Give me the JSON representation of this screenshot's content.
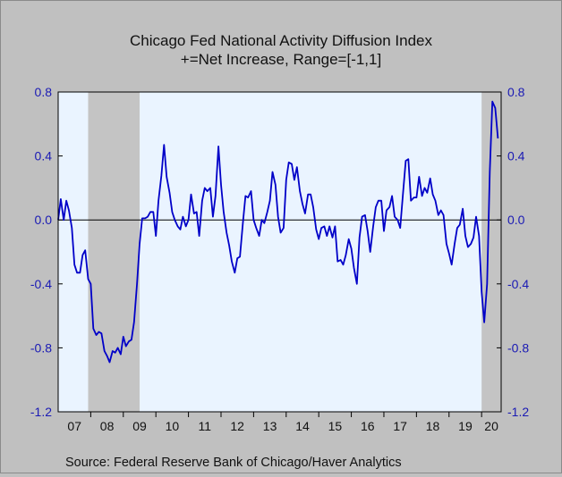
{
  "chart_data": {
    "type": "line",
    "title": "Chicago Fed National Activity Diffusion Index",
    "subtitle": "+=Net Increase, Range=[-1,1]",
    "source": "Source:  Federal Reserve Bank of Chicago/Haver Analytics",
    "x_tick_labels": [
      "07",
      "08",
      "09",
      "10",
      "11",
      "12",
      "13",
      "14",
      "15",
      "16",
      "17",
      "18",
      "19",
      "20"
    ],
    "x_range": [
      2007.0,
      2020.6
    ],
    "ylim": [
      -1.2,
      0.8
    ],
    "y_ticks": [
      0.8,
      0.4,
      0.0,
      -0.4,
      -0.8,
      -1.2
    ],
    "y_tick_labels": [
      "0.8",
      "0.4",
      "0.0",
      "-0.4",
      "-0.8",
      "-1.2"
    ],
    "zero_line": true,
    "recessions": [
      [
        2007.92,
        2009.5
      ],
      [
        2020.0,
        2020.6
      ]
    ],
    "series": [
      {
        "x": [
          2007.0,
          2007.08,
          2007.17,
          2007.25,
          2007.33,
          2007.42,
          2007.5,
          2007.58,
          2007.67,
          2007.75,
          2007.83,
          2007.92,
          2008.0,
          2008.08,
          2008.17,
          2008.25,
          2008.33,
          2008.42,
          2008.5,
          2008.58,
          2008.67,
          2008.75,
          2008.83,
          2008.92,
          2009.0,
          2009.08,
          2009.17,
          2009.25,
          2009.33,
          2009.42,
          2009.5,
          2009.58,
          2009.67,
          2009.75,
          2009.83,
          2009.92,
          2010.0,
          2010.08,
          2010.17,
          2010.25,
          2010.33,
          2010.42,
          2010.5,
          2010.58,
          2010.67,
          2010.75,
          2010.83,
          2010.92,
          2011.0,
          2011.08,
          2011.17,
          2011.25,
          2011.33,
          2011.42,
          2011.5,
          2011.58,
          2011.67,
          2011.75,
          2011.83,
          2011.92,
          2012.0,
          2012.08,
          2012.17,
          2012.25,
          2012.33,
          2012.42,
          2012.5,
          2012.58,
          2012.67,
          2012.75,
          2012.83,
          2012.92,
          2013.0,
          2013.08,
          2013.17,
          2013.25,
          2013.33,
          2013.42,
          2013.5,
          2013.58,
          2013.67,
          2013.75,
          2013.83,
          2013.92,
          2014.0,
          2014.08,
          2014.17,
          2014.25,
          2014.33,
          2014.42,
          2014.5,
          2014.58,
          2014.67,
          2014.75,
          2014.83,
          2014.92,
          2015.0,
          2015.08,
          2015.17,
          2015.25,
          2015.33,
          2015.42,
          2015.5,
          2015.58,
          2015.67,
          2015.75,
          2015.83,
          2015.92,
          2016.0,
          2016.08,
          2016.17,
          2016.25,
          2016.33,
          2016.42,
          2016.5,
          2016.58,
          2016.67,
          2016.75,
          2016.83,
          2016.92,
          2017.0,
          2017.08,
          2017.17,
          2017.25,
          2017.33,
          2017.42,
          2017.5,
          2017.58,
          2017.67,
          2017.75,
          2017.83,
          2017.92,
          2018.0,
          2018.08,
          2018.17,
          2018.25,
          2018.33,
          2018.42,
          2018.5,
          2018.58,
          2018.67,
          2018.75,
          2018.83,
          2018.92,
          2019.0,
          2019.08,
          2019.17,
          2019.25,
          2019.33,
          2019.42,
          2019.5,
          2019.58,
          2019.67,
          2019.75,
          2019.83,
          2019.92,
          2020.0,
          2020.08,
          2020.17,
          2020.25,
          2020.33,
          2020.42,
          2020.5
        ],
        "y": [
          0.0,
          0.13,
          0.0,
          0.12,
          0.06,
          -0.05,
          -0.28,
          -0.33,
          -0.33,
          -0.22,
          -0.19,
          -0.37,
          -0.4,
          -0.68,
          -0.72,
          -0.7,
          -0.71,
          -0.82,
          -0.85,
          -0.89,
          -0.82,
          -0.83,
          -0.8,
          -0.84,
          -0.73,
          -0.79,
          -0.76,
          -0.75,
          -0.64,
          -0.4,
          -0.15,
          0.01,
          0.01,
          0.02,
          0.05,
          0.05,
          -0.1,
          0.12,
          0.28,
          0.47,
          0.27,
          0.17,
          0.05,
          0.0,
          -0.04,
          -0.06,
          0.02,
          -0.04,
          0.0,
          0.16,
          0.04,
          0.05,
          -0.1,
          0.12,
          0.2,
          0.18,
          0.2,
          0.02,
          0.15,
          0.46,
          0.22,
          0.05,
          -0.08,
          -0.16,
          -0.26,
          -0.33,
          -0.24,
          -0.23,
          -0.02,
          0.15,
          0.14,
          0.18,
          0.0,
          -0.05,
          -0.1,
          0.0,
          -0.02,
          0.05,
          0.12,
          0.3,
          0.22,
          0.02,
          -0.08,
          -0.05,
          0.25,
          0.36,
          0.35,
          0.25,
          0.33,
          0.18,
          0.1,
          0.04,
          0.16,
          0.16,
          0.08,
          -0.06,
          -0.12,
          -0.05,
          -0.04,
          -0.1,
          -0.04,
          -0.11,
          -0.04,
          -0.26,
          -0.25,
          -0.28,
          -0.22,
          -0.12,
          -0.18,
          -0.3,
          -0.4,
          -0.11,
          0.02,
          0.03,
          -0.07,
          -0.2,
          -0.04,
          0.08,
          0.12,
          0.12,
          -0.07,
          0.06,
          0.08,
          0.15,
          0.02,
          0.0,
          -0.05,
          0.15,
          0.37,
          0.38,
          0.12,
          0.14,
          0.14,
          0.27,
          0.15,
          0.2,
          0.17,
          0.26,
          0.16,
          0.12,
          0.03,
          0.06,
          0.03,
          -0.15,
          -0.21,
          -0.28,
          -0.15,
          -0.05,
          -0.03,
          0.07,
          -0.1,
          -0.17,
          -0.15,
          -0.11,
          0.02,
          -0.1,
          -0.45,
          -0.64,
          -0.4,
          0.3,
          0.74,
          0.7,
          0.51
        ]
      }
    ]
  }
}
